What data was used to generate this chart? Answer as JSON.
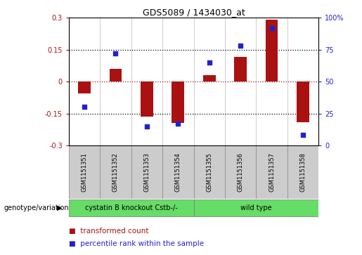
{
  "title": "GDS5089 / 1434030_at",
  "samples": [
    "GSM1151351",
    "GSM1151352",
    "GSM1151353",
    "GSM1151354",
    "GSM1151355",
    "GSM1151356",
    "GSM1151357",
    "GSM1151358"
  ],
  "transformed_count": [
    -0.055,
    0.06,
    -0.165,
    -0.195,
    0.03,
    0.115,
    0.29,
    -0.19
  ],
  "percentile_rank": [
    30,
    72,
    15,
    17,
    65,
    78,
    92,
    8
  ],
  "ylim_left": [
    -0.3,
    0.3
  ],
  "ylim_right": [
    0,
    100
  ],
  "yticks_left": [
    -0.3,
    -0.15,
    0,
    0.15,
    0.3
  ],
  "yticks_right": [
    0,
    25,
    50,
    75,
    100
  ],
  "bar_color": "#AA1111",
  "dot_color": "#2222CC",
  "group1_label": "cystatin B knockout Cstb-/-",
  "group2_label": "wild type",
  "group_color": "#66DD66",
  "group_label_text": "genotype/variation",
  "legend_bar": "transformed count",
  "legend_dot": "percentile rank within the sample",
  "bg_plot": "#FFFFFF",
  "bg_sample": "#CCCCCC"
}
